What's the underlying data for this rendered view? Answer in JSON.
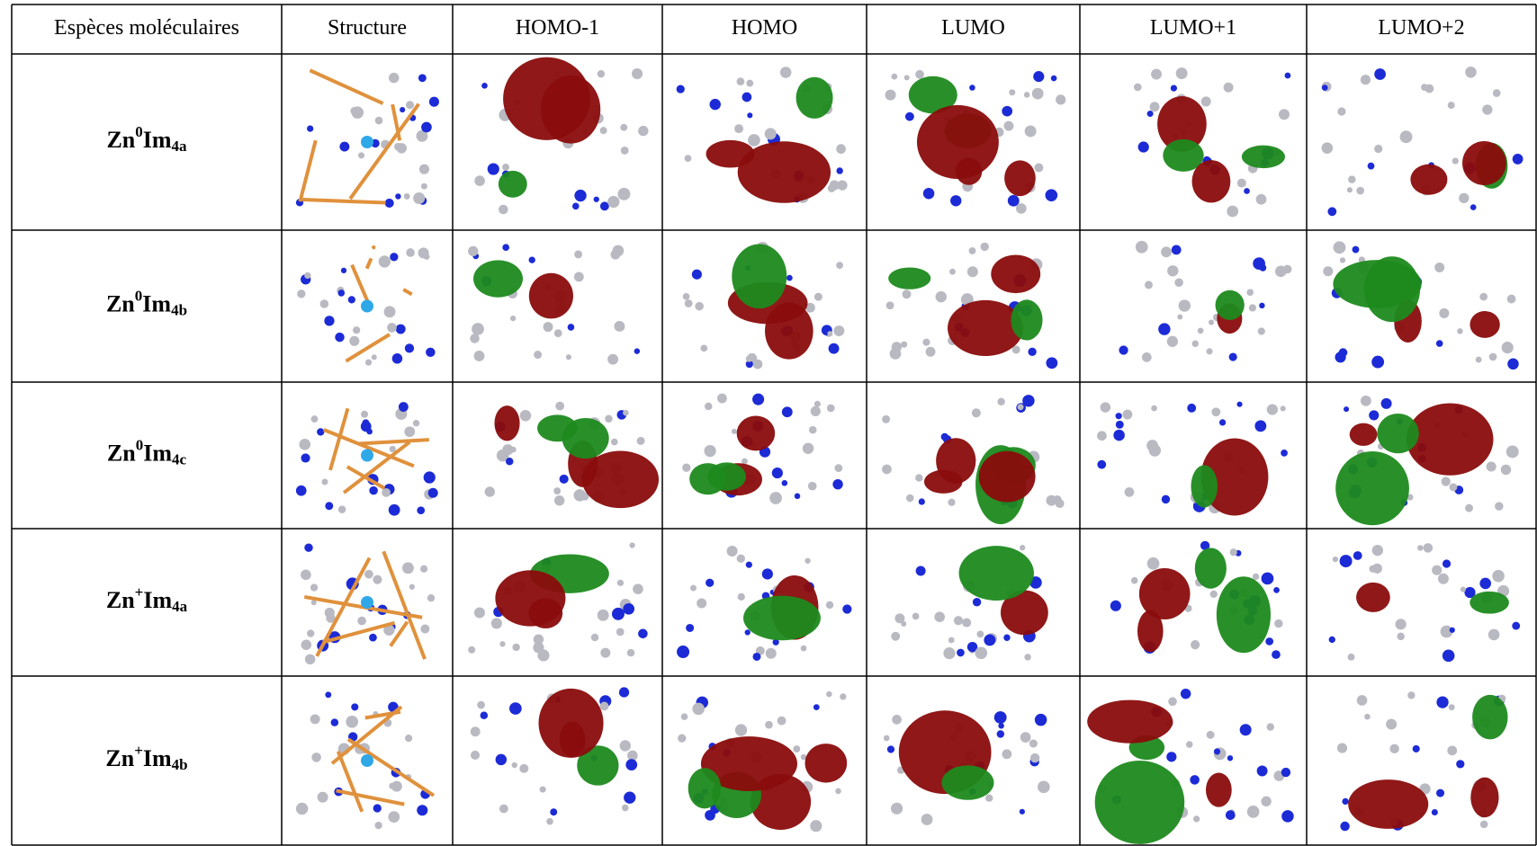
{
  "table": {
    "header": [
      "Espèces moléculaires",
      "Structure",
      "HOMO-1",
      "HOMO",
      "LUMO",
      "LUMO+1",
      "LUMO+2"
    ],
    "rows": [
      {
        "base": "Zn",
        "sup": "0",
        "mid": "Im",
        "sub": "4a"
      },
      {
        "base": "Zn",
        "sup": "0",
        "mid": "Im",
        "sub": "4b"
      },
      {
        "base": "Zn",
        "sup": "0",
        "mid": "Im",
        "sub": "4c"
      },
      {
        "base": "Zn",
        "sup": "+",
        "mid": "Im",
        "sub": "4a"
      },
      {
        "base": "Zn",
        "sup": "+",
        "mid": "Im",
        "sub": "4b"
      }
    ]
  }
}
